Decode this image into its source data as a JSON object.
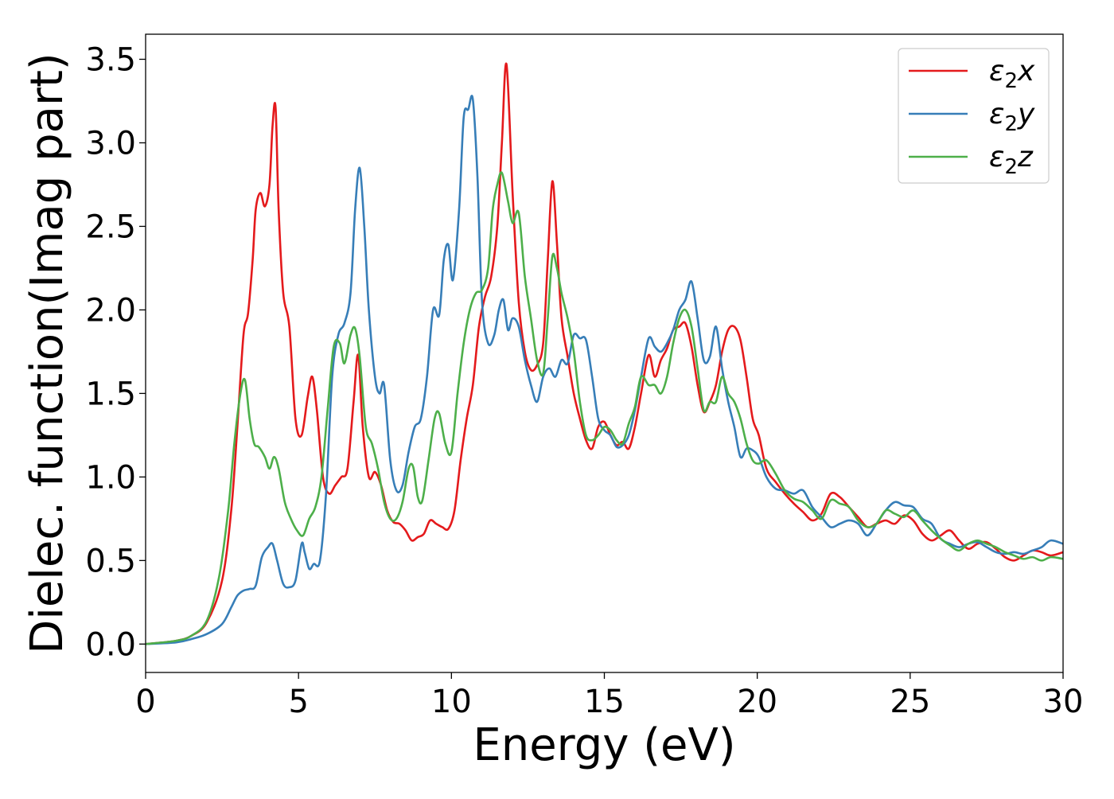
{
  "chart_data": {
    "type": "line",
    "xlabel": "Energy (eV)",
    "ylabel": "Dielec. function(Imag part)",
    "xlim": [
      0,
      30
    ],
    "ylim": [
      -0.17,
      3.65
    ],
    "xticks": [
      0,
      5,
      10,
      15,
      20,
      25,
      30
    ],
    "xtick_labels": [
      "0",
      "5",
      "10",
      "15",
      "20",
      "25",
      "30"
    ],
    "yticks": [
      0.0,
      0.5,
      1.0,
      1.5,
      2.0,
      2.5,
      3.0,
      3.5
    ],
    "ytick_labels": [
      "0.0",
      "0.5",
      "1.0",
      "1.5",
      "2.0",
      "2.5",
      "3.0",
      "3.5"
    ],
    "grid": false,
    "legend_position": "top-right",
    "series": [
      {
        "name": "ε₂x",
        "legend_base": "ε",
        "legend_sub": "2",
        "legend_suffix": "x",
        "color": "#e41a1c",
        "x": [
          0,
          1,
          1.5,
          2,
          2.5,
          2.8,
          3.0,
          3.2,
          3.35,
          3.5,
          3.6,
          3.75,
          3.9,
          4.05,
          4.15,
          4.25,
          4.35,
          4.5,
          4.7,
          4.9,
          5.1,
          5.3,
          5.45,
          5.6,
          5.8,
          6.0,
          6.2,
          6.4,
          6.6,
          6.8,
          6.95,
          7.1,
          7.3,
          7.5,
          7.7,
          7.9,
          8.1,
          8.3,
          8.5,
          8.7,
          8.9,
          9.1,
          9.3,
          9.5,
          9.7,
          9.9,
          10.1,
          10.3,
          10.5,
          10.7,
          10.9,
          11.1,
          11.3,
          11.5,
          11.65,
          11.8,
          12.0,
          12.2,
          12.4,
          12.6,
          12.8,
          13.0,
          13.15,
          13.3,
          13.45,
          13.6,
          13.8,
          14.0,
          14.2,
          14.4,
          14.6,
          14.8,
          15.0,
          15.2,
          15.4,
          15.6,
          15.8,
          16.0,
          16.2,
          16.45,
          16.65,
          16.85,
          17.05,
          17.25,
          17.45,
          17.65,
          17.85,
          18.05,
          18.25,
          18.45,
          18.65,
          18.85,
          19.05,
          19.25,
          19.45,
          19.65,
          19.85,
          20.05,
          20.3,
          20.6,
          20.9,
          21.2,
          21.5,
          21.8,
          22.1,
          22.4,
          22.7,
          23.0,
          23.3,
          23.6,
          23.9,
          24.2,
          24.5,
          24.8,
          25.1,
          25.4,
          25.7,
          26.0,
          26.3,
          26.6,
          26.9,
          27.2,
          27.5,
          27.8,
          28.1,
          28.4,
          28.7,
          29.0,
          29.3,
          29.6,
          30.0
        ],
        "y": [
          0.0,
          0.02,
          0.05,
          0.13,
          0.38,
          0.8,
          1.3,
          1.85,
          1.98,
          2.3,
          2.6,
          2.7,
          2.62,
          2.75,
          3.1,
          3.21,
          2.6,
          2.1,
          1.9,
          1.35,
          1.25,
          1.48,
          1.6,
          1.4,
          1.0,
          0.9,
          0.95,
          1.0,
          1.05,
          1.45,
          1.73,
          1.3,
          1.0,
          1.03,
          0.95,
          0.8,
          0.73,
          0.72,
          0.68,
          0.62,
          0.64,
          0.66,
          0.74,
          0.72,
          0.7,
          0.69,
          0.8,
          1.1,
          1.35,
          1.55,
          1.9,
          2.08,
          2.2,
          2.5,
          3.0,
          3.47,
          2.7,
          2.05,
          1.75,
          1.64,
          1.67,
          1.8,
          2.3,
          2.77,
          2.4,
          1.95,
          1.72,
          1.5,
          1.35,
          1.22,
          1.17,
          1.3,
          1.33,
          1.25,
          1.19,
          1.21,
          1.17,
          1.3,
          1.5,
          1.73,
          1.6,
          1.7,
          1.77,
          1.88,
          1.9,
          1.92,
          1.78,
          1.55,
          1.39,
          1.45,
          1.55,
          1.75,
          1.88,
          1.9,
          1.82,
          1.6,
          1.35,
          1.25,
          1.05,
          0.97,
          0.9,
          0.84,
          0.79,
          0.74,
          0.78,
          0.9,
          0.88,
          0.82,
          0.76,
          0.7,
          0.72,
          0.74,
          0.72,
          0.77,
          0.74,
          0.66,
          0.62,
          0.65,
          0.68,
          0.62,
          0.57,
          0.6,
          0.61,
          0.57,
          0.52,
          0.5,
          0.53,
          0.56,
          0.55,
          0.53,
          0.55
        ]
      },
      {
        "name": "ε₂y",
        "legend_base": "ε",
        "legend_sub": "2",
        "legend_suffix": "y",
        "color": "#377eb8",
        "x": [
          0,
          1,
          1.5,
          2,
          2.5,
          2.8,
          3.0,
          3.2,
          3.4,
          3.6,
          3.8,
          4.0,
          4.15,
          4.3,
          4.5,
          4.7,
          4.9,
          5.1,
          5.2,
          5.35,
          5.5,
          5.7,
          5.9,
          6.1,
          6.3,
          6.5,
          6.7,
          6.85,
          7.0,
          7.15,
          7.3,
          7.5,
          7.65,
          7.8,
          8.0,
          8.2,
          8.4,
          8.6,
          8.8,
          9.0,
          9.2,
          9.4,
          9.6,
          9.75,
          9.9,
          10.05,
          10.25,
          10.4,
          10.55,
          10.7,
          10.85,
          11.0,
          11.2,
          11.4,
          11.55,
          11.7,
          11.85,
          12.0,
          12.2,
          12.4,
          12.6,
          12.8,
          13.0,
          13.2,
          13.4,
          13.6,
          13.8,
          14.0,
          14.2,
          14.4,
          14.6,
          14.8,
          15.0,
          15.2,
          15.4,
          15.6,
          15.8,
          16.0,
          16.2,
          16.45,
          16.65,
          16.85,
          17.05,
          17.25,
          17.45,
          17.65,
          17.85,
          18.05,
          18.25,
          18.45,
          18.65,
          18.85,
          19.05,
          19.25,
          19.45,
          19.65,
          19.85,
          20.05,
          20.3,
          20.6,
          20.9,
          21.2,
          21.5,
          21.8,
          22.1,
          22.4,
          22.7,
          23.0,
          23.3,
          23.6,
          23.9,
          24.2,
          24.5,
          24.8,
          25.1,
          25.4,
          25.7,
          26.0,
          26.3,
          26.6,
          26.9,
          27.2,
          27.5,
          27.8,
          28.1,
          28.4,
          28.7,
          29.0,
          29.3,
          29.6,
          30.0
        ],
        "y": [
          0.0,
          0.01,
          0.03,
          0.06,
          0.12,
          0.22,
          0.29,
          0.32,
          0.33,
          0.35,
          0.52,
          0.58,
          0.6,
          0.5,
          0.36,
          0.34,
          0.38,
          0.6,
          0.55,
          0.45,
          0.48,
          0.5,
          0.9,
          1.6,
          1.85,
          1.92,
          2.1,
          2.6,
          2.85,
          2.5,
          2.0,
          1.6,
          1.5,
          1.55,
          1.1,
          0.92,
          0.95,
          1.15,
          1.3,
          1.35,
          1.6,
          2.0,
          1.97,
          2.3,
          2.39,
          2.18,
          2.6,
          3.15,
          3.2,
          3.26,
          2.8,
          2.05,
          1.8,
          1.85,
          2.0,
          2.06,
          1.88,
          1.95,
          1.9,
          1.7,
          1.55,
          1.45,
          1.6,
          1.65,
          1.6,
          1.7,
          1.68,
          1.85,
          1.83,
          1.82,
          1.6,
          1.35,
          1.28,
          1.25,
          1.18,
          1.19,
          1.25,
          1.4,
          1.6,
          1.83,
          1.78,
          1.75,
          1.8,
          1.88,
          2.0,
          2.06,
          2.17,
          1.95,
          1.7,
          1.72,
          1.9,
          1.65,
          1.45,
          1.3,
          1.12,
          1.17,
          1.16,
          1.12,
          1.0,
          0.93,
          0.92,
          0.9,
          0.92,
          0.82,
          0.76,
          0.7,
          0.72,
          0.74,
          0.72,
          0.65,
          0.72,
          0.8,
          0.85,
          0.83,
          0.82,
          0.75,
          0.72,
          0.63,
          0.6,
          0.58,
          0.6,
          0.61,
          0.58,
          0.55,
          0.54,
          0.55,
          0.54,
          0.56,
          0.58,
          0.62,
          0.6
        ]
      },
      {
        "name": "ε₂z",
        "legend_base": "ε",
        "legend_sub": "2",
        "legend_suffix": "z",
        "color": "#4daf4a",
        "x": [
          0,
          1,
          1.5,
          2,
          2.4,
          2.7,
          2.9,
          3.1,
          3.25,
          3.4,
          3.55,
          3.7,
          3.9,
          4.05,
          4.2,
          4.35,
          4.55,
          4.75,
          4.95,
          5.15,
          5.35,
          5.55,
          5.75,
          5.95,
          6.15,
          6.35,
          6.5,
          6.7,
          6.85,
          7.0,
          7.2,
          7.4,
          7.6,
          7.8,
          8.0,
          8.2,
          8.4,
          8.6,
          8.75,
          8.9,
          9.05,
          9.25,
          9.45,
          9.6,
          9.8,
          10.0,
          10.2,
          10.4,
          10.6,
          10.8,
          11.0,
          11.2,
          11.35,
          11.5,
          11.65,
          11.85,
          12.0,
          12.2,
          12.4,
          12.6,
          12.8,
          13.0,
          13.15,
          13.3,
          13.45,
          13.6,
          13.8,
          14.0,
          14.2,
          14.4,
          14.6,
          14.8,
          15.0,
          15.2,
          15.4,
          15.6,
          15.8,
          16.0,
          16.2,
          16.45,
          16.65,
          16.85,
          17.05,
          17.25,
          17.45,
          17.65,
          17.85,
          18.05,
          18.25,
          18.45,
          18.65,
          18.85,
          19.05,
          19.25,
          19.45,
          19.65,
          19.85,
          20.05,
          20.3,
          20.6,
          20.9,
          21.2,
          21.5,
          21.8,
          22.1,
          22.4,
          22.7,
          23.0,
          23.3,
          23.6,
          23.9,
          24.2,
          24.5,
          24.8,
          25.1,
          25.4,
          25.7,
          26.0,
          26.3,
          26.6,
          26.9,
          27.2,
          27.5,
          27.8,
          28.1,
          28.4,
          28.7,
          29.0,
          29.3,
          29.6,
          30.0
        ],
        "y": [
          0.0,
          0.02,
          0.05,
          0.14,
          0.4,
          0.8,
          1.2,
          1.5,
          1.58,
          1.35,
          1.2,
          1.18,
          1.12,
          1.05,
          1.12,
          1.05,
          0.85,
          0.75,
          0.68,
          0.65,
          0.75,
          0.82,
          1.0,
          1.4,
          1.78,
          1.8,
          1.68,
          1.85,
          1.89,
          1.72,
          1.3,
          1.2,
          1.05,
          0.85,
          0.75,
          0.75,
          0.85,
          1.05,
          1.06,
          0.88,
          0.86,
          1.1,
          1.35,
          1.38,
          1.2,
          1.15,
          1.5,
          1.8,
          2.0,
          2.1,
          2.12,
          2.25,
          2.6,
          2.75,
          2.82,
          2.65,
          2.52,
          2.58,
          2.2,
          1.95,
          1.7,
          1.62,
          1.95,
          2.32,
          2.25,
          2.1,
          1.95,
          1.75,
          1.45,
          1.25,
          1.22,
          1.25,
          1.3,
          1.28,
          1.22,
          1.2,
          1.32,
          1.42,
          1.6,
          1.55,
          1.55,
          1.5,
          1.6,
          1.8,
          1.95,
          2.0,
          1.9,
          1.65,
          1.4,
          1.45,
          1.45,
          1.6,
          1.5,
          1.45,
          1.35,
          1.2,
          1.1,
          1.08,
          1.1,
          1.02,
          0.92,
          0.87,
          0.85,
          0.8,
          0.75,
          0.86,
          0.84,
          0.82,
          0.74,
          0.7,
          0.72,
          0.8,
          0.78,
          0.76,
          0.8,
          0.74,
          0.68,
          0.63,
          0.59,
          0.56,
          0.6,
          0.62,
          0.6,
          0.58,
          0.55,
          0.53,
          0.51,
          0.52,
          0.5,
          0.52,
          0.51
        ]
      }
    ]
  }
}
